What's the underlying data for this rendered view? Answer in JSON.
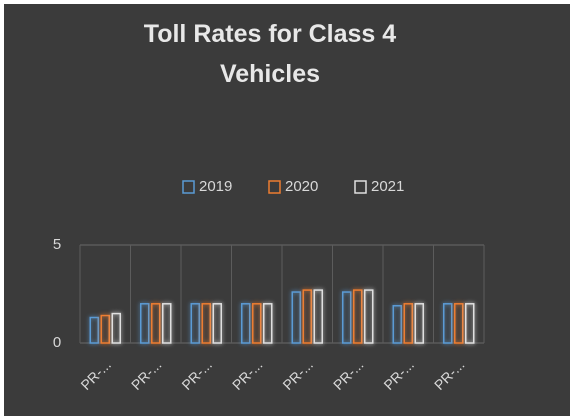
{
  "chart_data": {
    "type": "bar",
    "title": "Toll Rates for Class 4 Vehicles",
    "categories": [
      "PR-...",
      "PR-...",
      "PR-...",
      "PR-...",
      "PR-...",
      "PR-...",
      "PR-...",
      "PR-..."
    ],
    "series": [
      {
        "name": "2019",
        "color": "#5b9bd5",
        "values": [
          1.3,
          2.0,
          2.0,
          2.0,
          2.6,
          2.6,
          1.9,
          2.0
        ]
      },
      {
        "name": "2020",
        "color": "#ed7d31",
        "values": [
          1.4,
          2.0,
          2.0,
          2.0,
          2.7,
          2.7,
          2.0,
          2.0
        ]
      },
      {
        "name": "2021",
        "color": "#e0e0e0",
        "values": [
          1.5,
          2.0,
          2.0,
          2.0,
          2.7,
          2.7,
          2.0,
          2.0
        ]
      }
    ],
    "ylim": [
      0,
      5
    ],
    "yticks": [
      0,
      5
    ],
    "grid": true,
    "legend": "top"
  }
}
